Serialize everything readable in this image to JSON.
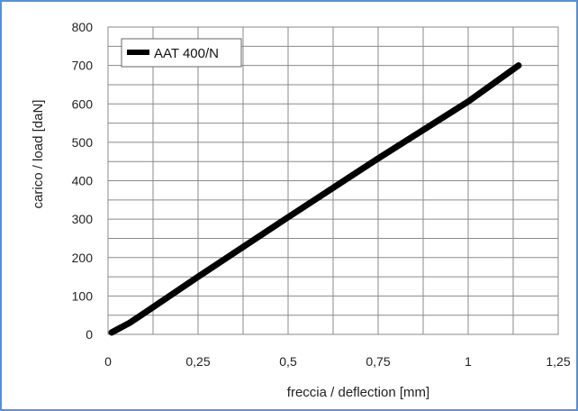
{
  "chart_data": {
    "type": "line",
    "title": "",
    "xlabel": "freccia / deflection [mm]",
    "ylabel": "carico / load [daN]",
    "xlim": [
      0,
      1.25
    ],
    "ylim": [
      0,
      800
    ],
    "x_ticks": [
      0,
      0.25,
      0.5,
      0.75,
      1,
      1.25
    ],
    "x_tick_labels": [
      "0",
      "0,25",
      "0,5",
      "0,75",
      "1",
      "1,25"
    ],
    "y_ticks": [
      0,
      100,
      200,
      300,
      400,
      500,
      600,
      700,
      800
    ],
    "y_tick_labels": [
      "0",
      "100",
      "200",
      "300",
      "400",
      "500",
      "600",
      "700",
      "800"
    ],
    "grid": true,
    "legend_position": "top-left",
    "series": [
      {
        "name": "AAT 400/N",
        "color": "#000000",
        "x": [
          0.01,
          0.06,
          0.1,
          0.25,
          0.5,
          0.75,
          1.0,
          1.14
        ],
        "y": [
          5,
          30,
          55,
          150,
          305,
          458,
          606,
          700
        ]
      }
    ]
  }
}
